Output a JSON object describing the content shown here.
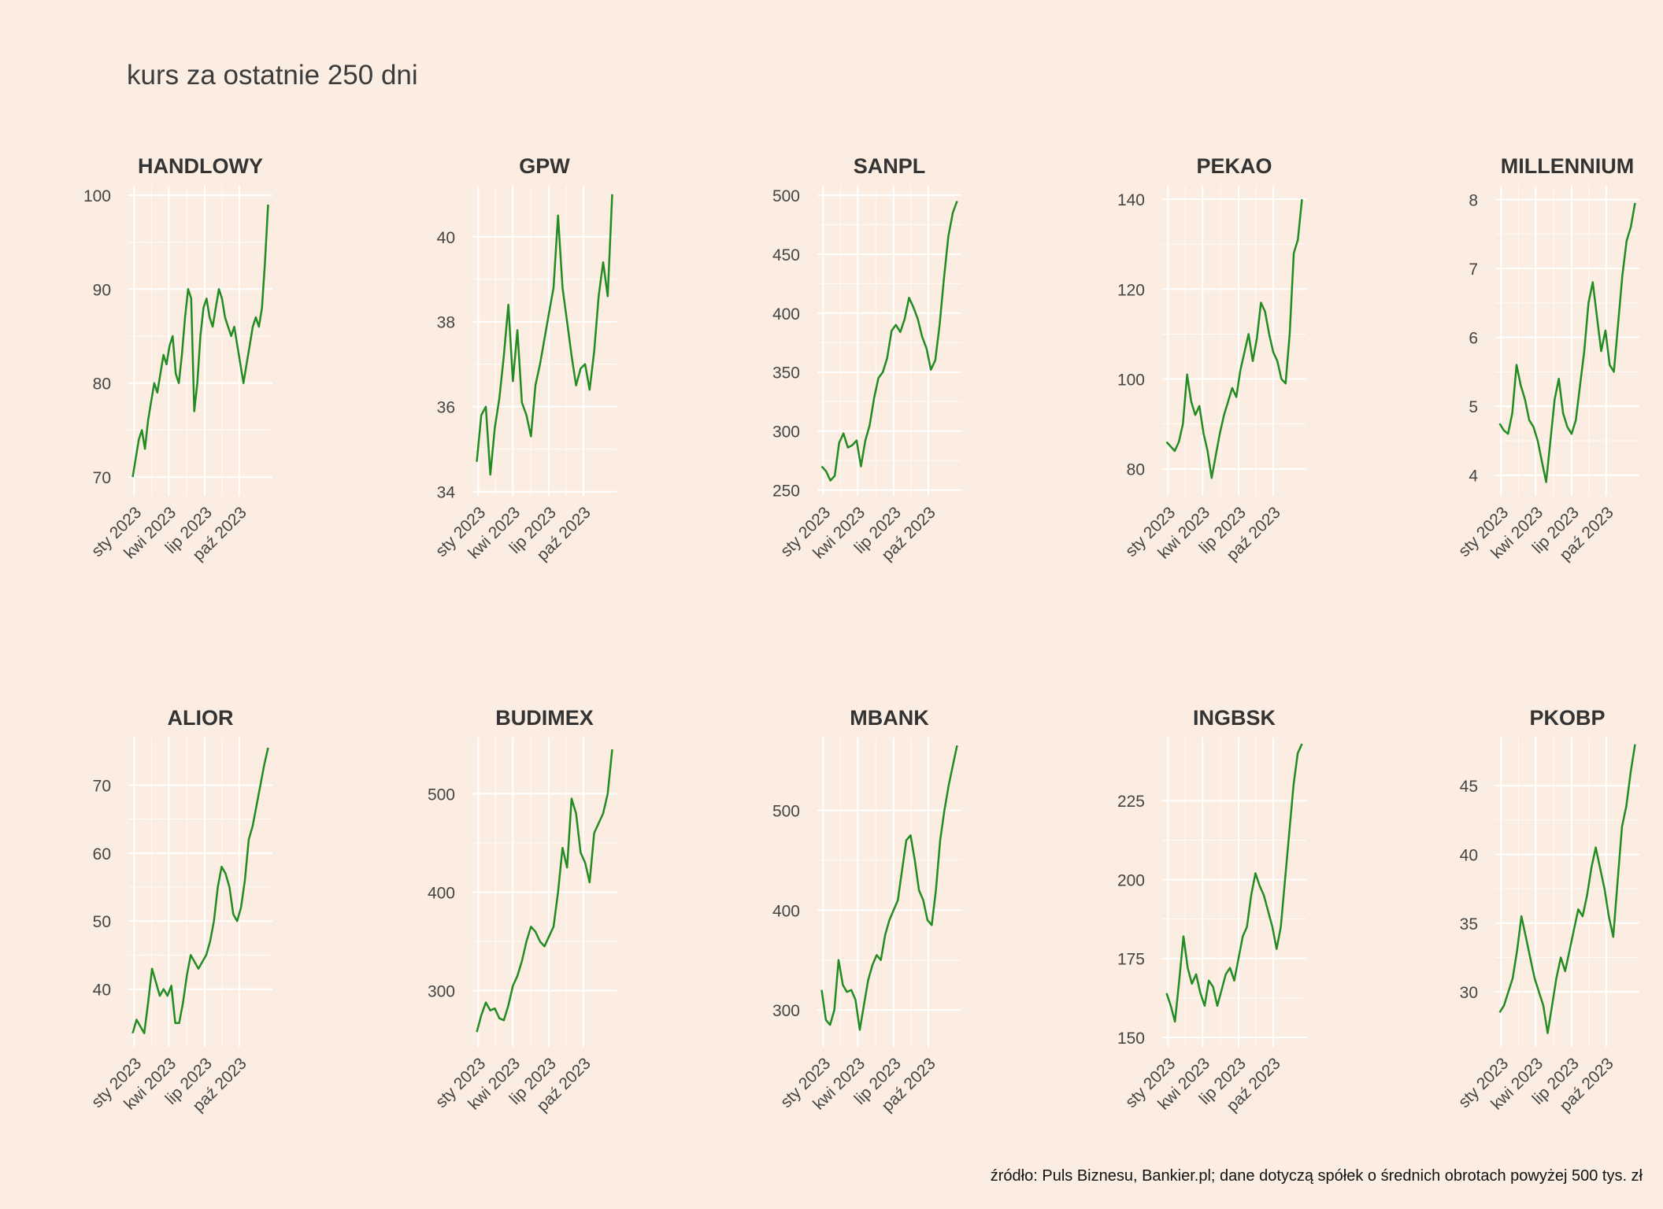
{
  "title": "kurs za ostatnie 250 dni",
  "source": "źródło: Puls Biznesu, Bankier.pl; dane dotyczą spółek o średnich obrotach powyżej 500 tys. zł",
  "colors": {
    "background": "#FBEDE1",
    "line": "#228B22",
    "grid": "#FFFFFF",
    "text": "#444444"
  },
  "chart_data": [
    {
      "type": "line",
      "title": "HANDLOWY",
      "x_ticks": [
        "sty 2023",
        "kwi 2023",
        "lip 2023",
        "paź 2023"
      ],
      "y_ticks": [
        70,
        80,
        90,
        100
      ],
      "ylim": [
        68,
        101
      ],
      "values": [
        70,
        72,
        74,
        75,
        73,
        76,
        78,
        80,
        79,
        81,
        83,
        82,
        84,
        85,
        81,
        80,
        83,
        87,
        90,
        89,
        77,
        80,
        85,
        88,
        89,
        87,
        86,
        88,
        90,
        89,
        87,
        86,
        85,
        86,
        84,
        82,
        80,
        82,
        84,
        86,
        87,
        86,
        88,
        93,
        99
      ]
    },
    {
      "type": "line",
      "title": "GPW",
      "x_ticks": [
        "sty 2023",
        "kwi 2023",
        "lip 2023",
        "paź 2023"
      ],
      "y_ticks": [
        34,
        36,
        38,
        40
      ],
      "ylim": [
        33.9,
        41.2
      ],
      "values": [
        34.7,
        35.8,
        36.0,
        34.4,
        35.5,
        36.2,
        37.2,
        38.4,
        36.6,
        37.8,
        36.1,
        35.8,
        35.3,
        36.5,
        37.0,
        37.6,
        38.2,
        38.8,
        40.5,
        38.8,
        38.0,
        37.2,
        36.5,
        36.9,
        37.0,
        36.4,
        37.3,
        38.6,
        39.4,
        38.6,
        41.0
      ]
    },
    {
      "type": "line",
      "title": "SANPL",
      "x_ticks": [
        "sty 2023",
        "kwi 2023",
        "lip 2023",
        "paź 2023"
      ],
      "y_ticks": [
        250,
        300,
        350,
        400,
        450,
        500
      ],
      "ylim": [
        245,
        508
      ],
      "values": [
        270,
        266,
        258,
        262,
        290,
        298,
        286,
        288,
        292,
        270,
        292,
        305,
        328,
        345,
        350,
        362,
        385,
        390,
        384,
        395,
        413,
        405,
        395,
        380,
        370,
        352,
        360,
        390,
        430,
        465,
        485,
        495
      ]
    },
    {
      "type": "line",
      "title": "PEKAO",
      "x_ticks": [
        "sty 2023",
        "kwi 2023",
        "lip 2023",
        "paź 2023"
      ],
      "y_ticks": [
        80,
        100,
        120,
        140
      ],
      "ylim": [
        74,
        143
      ],
      "values": [
        86,
        85,
        84,
        86,
        90,
        101,
        95,
        92,
        94,
        88,
        84,
        78,
        83,
        88,
        92,
        95,
        98,
        96,
        102,
        106,
        110,
        104,
        109,
        117,
        115,
        110,
        106,
        104,
        100,
        99,
        110,
        128,
        131,
        140
      ]
    },
    {
      "type": "line",
      "title": "MILLENNIUM",
      "x_ticks": [
        "sty 2023",
        "kwi 2023",
        "lip 2023",
        "paź 2023"
      ],
      "y_ticks": [
        4,
        5,
        6,
        7,
        8
      ],
      "ylim": [
        3.7,
        8.2
      ],
      "values": [
        4.75,
        4.65,
        4.6,
        4.9,
        5.6,
        5.3,
        5.1,
        4.8,
        4.7,
        4.5,
        4.2,
        3.9,
        4.5,
        5.1,
        5.4,
        4.9,
        4.7,
        4.6,
        4.8,
        5.3,
        5.8,
        6.5,
        6.8,
        6.3,
        5.8,
        6.1,
        5.6,
        5.5,
        6.2,
        6.9,
        7.4,
        7.6,
        7.95
      ]
    },
    {
      "type": "line",
      "title": "ALIOR",
      "x_ticks": [
        "sty 2023",
        "kwi 2023",
        "lip 2023",
        "paź 2023"
      ],
      "y_ticks": [
        40,
        50,
        60,
        70
      ],
      "ylim": [
        31.5,
        77
      ],
      "values": [
        33.5,
        35.5,
        34.5,
        33.5,
        38,
        43,
        41,
        39,
        40,
        39,
        40.5,
        35,
        35,
        38,
        42,
        45,
        44,
        43,
        44,
        45,
        47,
        50,
        55,
        58,
        57,
        55,
        51,
        50,
        52,
        56,
        62,
        64,
        67,
        70,
        73,
        75.5
      ]
    },
    {
      "type": "line",
      "title": "BUDIMEX",
      "x_ticks": [
        "sty 2023",
        "kwi 2023",
        "lip 2023",
        "paź 2023"
      ],
      "y_ticks": [
        300,
        400,
        500
      ],
      "ylim": [
        243,
        557
      ],
      "values": [
        258,
        275,
        288,
        280,
        282,
        272,
        270,
        285,
        305,
        315,
        330,
        350,
        365,
        360,
        350,
        345,
        355,
        365,
        400,
        445,
        425,
        495,
        480,
        440,
        430,
        410,
        460,
        470,
        480,
        500,
        545
      ]
    },
    {
      "type": "line",
      "title": "MBANK",
      "x_ticks": [
        "sty 2023",
        "kwi 2023",
        "lip 2023",
        "paź 2023"
      ],
      "y_ticks": [
        300,
        400,
        500
      ],
      "ylim": [
        263,
        573
      ],
      "values": [
        320,
        290,
        285,
        300,
        350,
        325,
        318,
        320,
        310,
        280,
        305,
        330,
        345,
        355,
        350,
        375,
        390,
        400,
        410,
        440,
        470,
        475,
        450,
        420,
        410,
        390,
        385,
        420,
        470,
        500,
        525,
        545,
        565
      ]
    },
    {
      "type": "line",
      "title": "INGBSK",
      "x_ticks": [
        "sty 2023",
        "kwi 2023",
        "lip 2023",
        "paź 2023"
      ],
      "y_ticks": [
        150,
        175,
        200,
        225
      ],
      "ylim": [
        147,
        245
      ],
      "values": [
        164,
        160,
        155,
        168,
        182,
        172,
        167,
        170,
        164,
        160,
        168,
        166,
        160,
        165,
        170,
        172,
        168,
        175,
        182,
        185,
        195,
        202,
        198,
        195,
        190,
        185,
        178,
        185,
        200,
        215,
        230,
        240,
        243
      ]
    },
    {
      "type": "line",
      "title": "PKOBP",
      "x_ticks": [
        "sty 2023",
        "kwi 2023",
        "lip 2023",
        "paź 2023"
      ],
      "y_ticks": [
        30,
        35,
        40,
        45
      ],
      "ylim": [
        26,
        48.5
      ],
      "values": [
        28.5,
        29,
        30,
        31,
        33,
        35.5,
        34,
        32.5,
        31,
        30,
        29,
        27,
        29,
        31,
        32.5,
        31.5,
        33,
        34.5,
        36,
        35.5,
        37,
        39,
        40.5,
        39,
        37.5,
        35.5,
        34,
        38,
        42,
        43.5,
        46,
        48
      ]
    }
  ]
}
